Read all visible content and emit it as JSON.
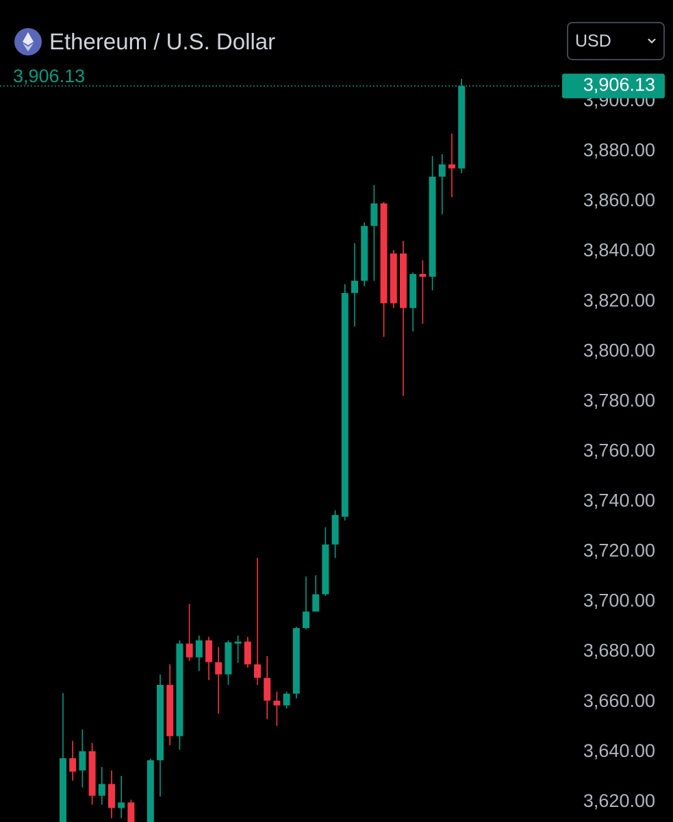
{
  "header": {
    "title": "Ethereum / U.S. Dollar",
    "currency": "USD"
  },
  "chart_data": {
    "type": "candlestick",
    "open": [
      3608,
      3637.5,
      3632.6,
      3640.3,
      3622.5,
      3627.2,
      3617.6,
      3619.8,
      null,
      3606,
      3636.7,
      3666.8,
      3646.3,
      3683.3,
      3677.8,
      3684.6,
      3675.9,
      3671,
      3683.3,
      3684.1,
      3675,
      3669.6,
      3660.5,
      3658.6,
      3663.3,
      3689.5,
      3696.1,
      3703,
      3722.9,
      3734,
      3823.4,
      3828.3,
      3850.2,
      3859.2,
      3839.2,
      3839.2,
      3817.4,
      3831,
      3829.9,
      3869.9,
      3874.8,
      3873.2
    ],
    "high": [
      3663.5,
      3644.4,
      3649,
      3643.6,
      3634,
      3632.6,
      3630.4,
      3620.9,
      null,
      3637.3,
      3671,
      3675,
      3684.6,
      3699.1,
      3686.5,
      3686,
      3681.9,
      3684.6,
      3686.5,
      3686,
      3717.5,
      3678.3,
      3664.1,
      3664.1,
      3690,
      3710.1,
      3710.6,
      3729.8,
      3736.6,
      3826.9,
      3843.3,
      3851.6,
      3866.6,
      3859.8,
      3840.6,
      3844.2,
      3831.6,
      3836.5,
      3878.1,
      3878.9,
      3887.1,
      3909
    ],
    "low": [
      3600,
      3628.5,
      3625.8,
      3618.9,
      3618.9,
      3613.5,
      3613.5,
      3605,
      null,
      3600,
      3622.2,
      3642.7,
      3640.8,
      3676.4,
      3672.3,
      3668.7,
      3655.3,
      3666.8,
      3675.6,
      3673.7,
      3666.8,
      3653.1,
      3650.4,
      3657.3,
      3661.4,
      3689,
      3696.1,
      3702.4,
      3717.5,
      3732.5,
      3810,
      3826.1,
      3828.3,
      3805.9,
      3817.4,
      3782.3,
      3808,
      3811.1,
      3824.5,
      3854.8,
      3861.7,
      3871.3
    ],
    "close": [
      3637.5,
      3632.1,
      3640.3,
      3622.5,
      3627.2,
      3617.6,
      3619.8,
      3608,
      null,
      3636.7,
      3666.8,
      3646.3,
      3683.3,
      3677.8,
      3684.6,
      3675.9,
      3671,
      3683.8,
      3684.1,
      3675,
      3669.6,
      3660.5,
      3658.6,
      3663.3,
      3689.5,
      3696.1,
      3703,
      3722.9,
      3734.7,
      3823.4,
      3828.3,
      3850.2,
      3859.2,
      3819.3,
      3819.3,
      3817.4,
      3831,
      3829.9,
      3869.9,
      3874.8,
      3873.2,
      3906.13
    ],
    "up_color": "#089981",
    "down_color": "#f23645",
    "ylim": [
      3612,
      3940.5
    ],
    "yticks": [
      {
        "value": 3620,
        "label": "3,620.00"
      },
      {
        "value": 3640,
        "label": "3,640.00"
      },
      {
        "value": 3660,
        "label": "3,660.00"
      },
      {
        "value": 3680,
        "label": "3,680.00"
      },
      {
        "value": 3700,
        "label": "3,700.00"
      },
      {
        "value": 3720,
        "label": "3,720.00"
      },
      {
        "value": 3740,
        "label": "3,740.00"
      },
      {
        "value": 3760,
        "label": "3,760.00"
      },
      {
        "value": 3780,
        "label": "3,780.00"
      },
      {
        "value": 3800,
        "label": "3,800.00"
      },
      {
        "value": 3820,
        "label": "3,820.00"
      },
      {
        "value": 3840,
        "label": "3,840.00"
      },
      {
        "value": 3860,
        "label": "3,860.00"
      },
      {
        "value": 3880,
        "label": "3,880.00"
      },
      {
        "value": 3900,
        "label": "3,900.00"
      }
    ],
    "last_price": {
      "value": 3906.13,
      "label": "3,906.13"
    }
  }
}
